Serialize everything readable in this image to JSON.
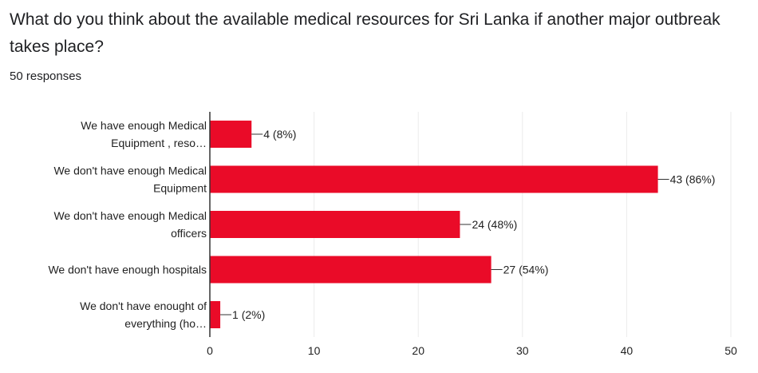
{
  "form": {
    "question": "What do you think about the available medical resources for Sri Lanka if another major outbreak takes place?",
    "responses_label": "50 responses"
  },
  "colors": {
    "bar": "#ea0b28",
    "grid": "#ebebeb",
    "axis": "#333333",
    "text": "#222222"
  },
  "chart_data": {
    "type": "bar",
    "orientation": "horizontal",
    "categories": [
      [
        "We have enough Medical",
        "Equipment , reso…"
      ],
      [
        "We don't have enough Medical",
        "Equipment"
      ],
      [
        "We don't have enough Medical",
        "officers"
      ],
      [
        "We don't have enough hospitals"
      ],
      [
        "We don't have enought of",
        "everything (ho…"
      ]
    ],
    "values": [
      4,
      43,
      24,
      27,
      1
    ],
    "data_labels": [
      "4 (8%)",
      "43 (86%)",
      "24 (48%)",
      "27 (54%)",
      "1 (2%)"
    ],
    "xlim": [
      0,
      50
    ],
    "x_ticks": [
      0,
      10,
      20,
      30,
      40,
      50
    ],
    "grid": true,
    "legend": "none"
  }
}
